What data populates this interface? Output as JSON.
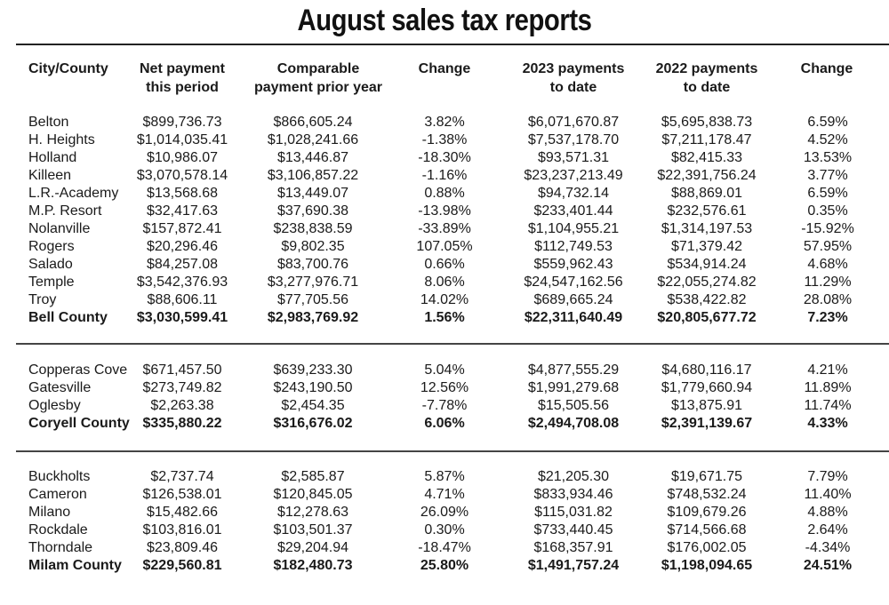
{
  "title": "August sales tax reports",
  "headers": {
    "city": "City/County",
    "net_1": "Net payment",
    "net_2": "this period",
    "comp_1": "Comparable",
    "comp_2": "payment prior year",
    "change": "Change",
    "p2023_1": "2023 payments",
    "p2023_2": "to date",
    "p2022_1": "2022 payments",
    "p2022_2": "to date",
    "change2": "Change"
  },
  "groups": [
    {
      "rows": [
        {
          "name": "Belton",
          "net": "$899,736.73",
          "prior": "$866,605.24",
          "change": "3.82%",
          "ytd2023": "$6,071,670.87",
          "ytd2022": "$5,695,838.73",
          "change2": "6.59%"
        },
        {
          "name": "H. Heights",
          "net": "$1,014,035.41",
          "prior": "$1,028,241.66",
          "change": "-1.38%",
          "ytd2023": "$7,537,178.70",
          "ytd2022": "$7,211,178.47",
          "change2": "4.52%"
        },
        {
          "name": "Holland",
          "net": "$10,986.07",
          "prior": "$13,446.87",
          "change": "-18.30%",
          "ytd2023": "$93,571.31",
          "ytd2022": "$82,415.33",
          "change2": "13.53%"
        },
        {
          "name": "Killeen",
          "net": "$3,070,578.14",
          "prior": "$3,106,857.22",
          "change": "-1.16%",
          "ytd2023": "$23,237,213.49",
          "ytd2022": "$22,391,756.24",
          "change2": "3.77%"
        },
        {
          "name": "L.R.-Academy",
          "net": "$13,568.68",
          "prior": "$13,449.07",
          "change": "0.88%",
          "ytd2023": "$94,732.14",
          "ytd2022": "$88,869.01",
          "change2": "6.59%"
        },
        {
          "name": "M.P. Resort",
          "net": "$32,417.63",
          "prior": "$37,690.38",
          "change": "-13.98%",
          "ytd2023": "$233,401.44",
          "ytd2022": "$232,576.61",
          "change2": "0.35%"
        },
        {
          "name": "Nolanville",
          "net": "$157,872.41",
          "prior": "$238,838.59",
          "change": "-33.89%",
          "ytd2023": "$1,104,955.21",
          "ytd2022": "$1,314,197.53",
          "change2": "-15.92%"
        },
        {
          "name": "Rogers",
          "net": "$20,296.46",
          "prior": "$9,802.35",
          "change": "107.05%",
          "ytd2023": "$112,749.53",
          "ytd2022": "$71,379.42",
          "change2": "57.95%"
        },
        {
          "name": "Salado",
          "net": "$84,257.08",
          "prior": "$83,700.76",
          "change": "0.66%",
          "ytd2023": "$559,962.43",
          "ytd2022": "$534,914.24",
          "change2": "4.68%"
        },
        {
          "name": "Temple",
          "net": "$3,542,376.93",
          "prior": "$3,277,976.71",
          "change": "8.06%",
          "ytd2023": "$24,547,162.56",
          "ytd2022": "$22,055,274.82",
          "change2": "11.29%"
        },
        {
          "name": "Troy",
          "net": "$88,606.11",
          "prior": "$77,705.56",
          "change": "14.02%",
          "ytd2023": "$689,665.24",
          "ytd2022": "$538,422.82",
          "change2": "28.08%"
        }
      ],
      "total": {
        "name": "Bell County",
        "net": "$3,030,599.41",
        "prior": "$2,983,769.92",
        "change": "1.56%",
        "ytd2023": "$22,311,640.49",
        "ytd2022": "$20,805,677.72",
        "change2": "7.23%"
      }
    },
    {
      "rows": [
        {
          "name": "Copperas Cove",
          "net": "$671,457.50",
          "prior": "$639,233.30",
          "change": "5.04%",
          "ytd2023": "$4,877,555.29",
          "ytd2022": "$4,680,116.17",
          "change2": "4.21%"
        },
        {
          "name": "Gatesville",
          "net": "$273,749.82",
          "prior": "$243,190.50",
          "change": "12.56%",
          "ytd2023": "$1,991,279.68",
          "ytd2022": "$1,779,660.94",
          "change2": "11.89%"
        },
        {
          "name": "Oglesby",
          "net": "$2,263.38",
          "prior": "$2,454.35",
          "change": "-7.78%",
          "ytd2023": "$15,505.56",
          "ytd2022": "$13,875.91",
          "change2": "11.74%"
        }
      ],
      "total": {
        "name": "Coryell County",
        "net": "$335,880.22",
        "prior": "$316,676.02",
        "change": "6.06%",
        "ytd2023": "$2,494,708.08",
        "ytd2022": "$2,391,139.67",
        "change2": "4.33%"
      }
    },
    {
      "rows": [
        {
          "name": "Buckholts",
          "net": "$2,737.74",
          "prior": "$2,585.87",
          "change": "5.87%",
          "ytd2023": "$21,205.30",
          "ytd2022": "$19,671.75",
          "change2": "7.79%"
        },
        {
          "name": "Cameron",
          "net": "$126,538.01",
          "prior": "$120,845.05",
          "change": "4.71%",
          "ytd2023": "$833,934.46",
          "ytd2022": "$748,532.24",
          "change2": "11.40%"
        },
        {
          "name": "Milano",
          "net": "$15,482.66",
          "prior": "$12,278.63",
          "change": "26.09%",
          "ytd2023": "$115,031.82",
          "ytd2022": "$109,679.26",
          "change2": "4.88%"
        },
        {
          "name": "Rockdale",
          "net": "$103,816.01",
          "prior": "$103,501.37",
          "change": "0.30%",
          "ytd2023": "$733,440.45",
          "ytd2022": "$714,566.68",
          "change2": "2.64%"
        },
        {
          "name": "Thorndale",
          "net": "$23,809.46",
          "prior": "$29,204.94",
          "change": "-18.47%",
          "ytd2023": "$168,357.91",
          "ytd2022": "$176,002.05",
          "change2": "-4.34%"
        }
      ],
      "total": {
        "name": "Milam County",
        "net": "$229,560.81",
        "prior": "$182,480.73",
        "change": "25.80%",
        "ytd2023": "$1,491,757.24",
        "ytd2022": "$1,198,094.65",
        "change2": "24.51%"
      }
    }
  ]
}
